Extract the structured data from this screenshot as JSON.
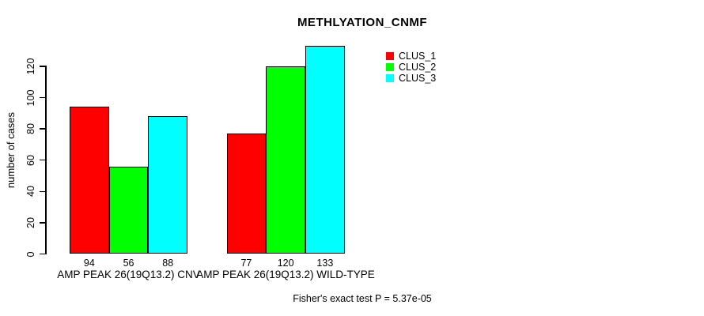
{
  "title": "METHLYATION_CNMF",
  "footer_annotation": "Fisher's exact test P = 5.37e-05",
  "colors": {
    "background": "#FFFFFF",
    "axis": "#000000",
    "text": "#000000",
    "clus_1": "#FF0000",
    "clus_2": "#00FF00",
    "clus_3": "#00FFFF"
  },
  "chart_data": {
    "type": "bar",
    "title": "METHLYATION_CNMF",
    "xlabel": "",
    "ylabel": "number of cases",
    "categories": [
      "AMP PEAK 26(19Q13.2) CNV",
      "AMP PEAK 26(19Q13.2) WILD-TYPE"
    ],
    "series": [
      {
        "name": "CLUS_1",
        "color": "#FF0000",
        "values": [
          94,
          77
        ]
      },
      {
        "name": "CLUS_2",
        "color": "#00FF00",
        "values": [
          56,
          120
        ]
      },
      {
        "name": "CLUS_3",
        "color": "#00FFFF",
        "values": [
          88,
          133
        ]
      }
    ],
    "bar_value_labels": [
      [
        "94",
        "56",
        "88"
      ],
      [
        "77",
        "120",
        "133"
      ]
    ],
    "yticks": [
      0,
      20,
      40,
      60,
      80,
      100,
      120
    ],
    "ylim": [
      0,
      133
    ],
    "grid": false,
    "legend_position": "top-right",
    "legend_entries": [
      "CLUS_1",
      "CLUS_2",
      "CLUS_3"
    ],
    "annotation": "Fisher's exact test P = 5.37e-05"
  }
}
